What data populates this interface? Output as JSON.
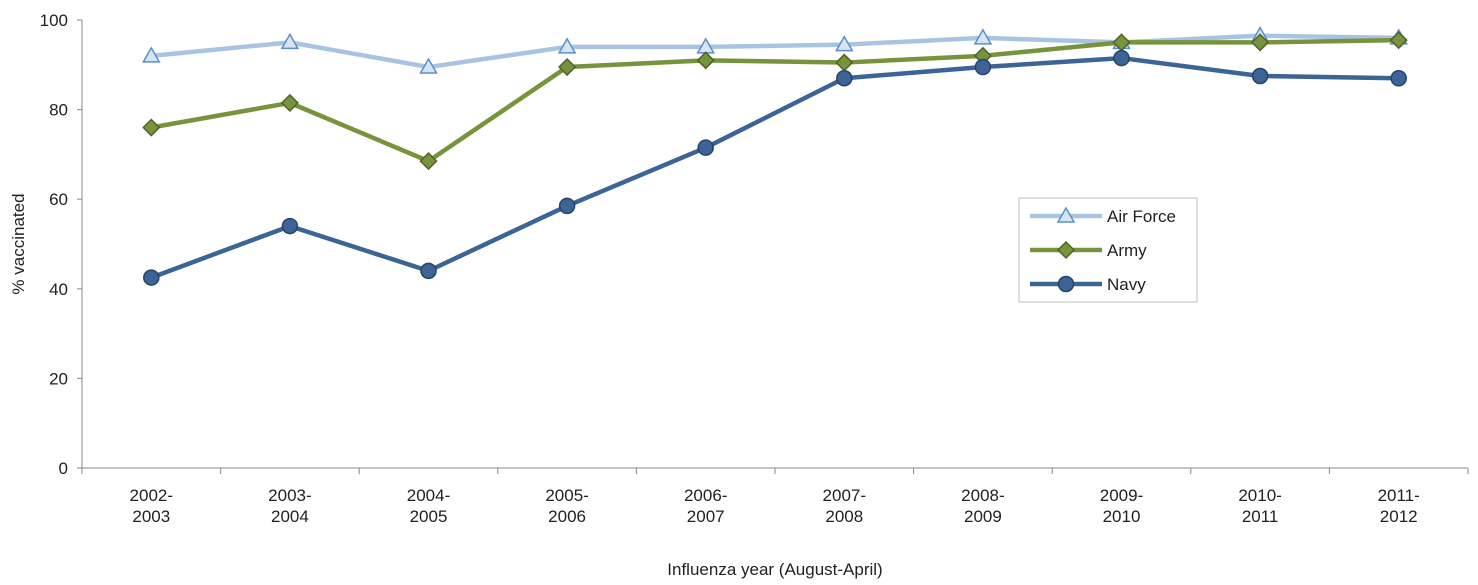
{
  "chart_data": {
    "type": "line",
    "title": "",
    "xlabel": "Influenza year (August-April)",
    "ylabel": "% vaccinated",
    "ylim": [
      0,
      100
    ],
    "yticks": [
      0,
      20,
      40,
      60,
      80,
      100
    ],
    "grid": false,
    "legend_position": "right",
    "categories": [
      [
        "2002-",
        "2003"
      ],
      [
        "2003-",
        "2004"
      ],
      [
        "2004-",
        "2005"
      ],
      [
        "2005-",
        "2006"
      ],
      [
        "2006-",
        "2007"
      ],
      [
        "2007-",
        "2008"
      ],
      [
        "2008-",
        "2009"
      ],
      [
        "2009-",
        "2010"
      ],
      [
        "2010-",
        "2011"
      ],
      [
        "2011-",
        "2012"
      ]
    ],
    "series": [
      {
        "name": "Air Force",
        "marker": "triangle",
        "color": "#a9c4e2",
        "marker_fill": "#d6e4f3",
        "marker_stroke": "#5b8fc7",
        "values": [
          92,
          95,
          89.5,
          94,
          94,
          94.5,
          96,
          95,
          96.5,
          96
        ]
      },
      {
        "name": "Army",
        "marker": "diamond",
        "color": "#77933c",
        "marker_fill": "#77933c",
        "marker_stroke": "#4f6228",
        "values": [
          76,
          81.5,
          68.5,
          89.5,
          91,
          90.5,
          92,
          95,
          95,
          95.5
        ]
      },
      {
        "name": "Navy",
        "marker": "circle",
        "color": "#3d6496",
        "marker_fill": "#3d6496",
        "marker_stroke": "#274367",
        "values": [
          42.5,
          54,
          44,
          58.5,
          71.5,
          87,
          89.5,
          91.5,
          87.5,
          87
        ]
      }
    ]
  }
}
